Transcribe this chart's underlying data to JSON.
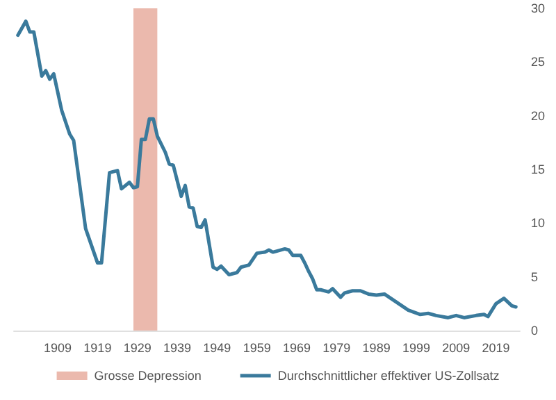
{
  "chart_data": {
    "type": "line",
    "x": [
      1899,
      1901,
      1902,
      1903,
      1905,
      1906,
      1907,
      1908,
      1910,
      1912,
      1913,
      1916,
      1919,
      1920,
      1922,
      1924,
      1925,
      1927,
      1928,
      1929,
      1930,
      1931,
      1932,
      1933,
      1934,
      1936,
      1937,
      1938,
      1940,
      1941,
      1942,
      1943,
      1944,
      1945,
      1946,
      1948,
      1949,
      1950,
      1952,
      1954,
      1955,
      1957,
      1959,
      1961,
      1962,
      1963,
      1964,
      1966,
      1967,
      1968,
      1970,
      1971,
      1972,
      1973,
      1974,
      1975,
      1977,
      1978,
      1980,
      1981,
      1983,
      1985,
      1987,
      1989,
      1991,
      1993,
      1995,
      1997,
      2000,
      2002,
      2004,
      2007,
      2009,
      2011,
      2014,
      2016,
      2017,
      2019,
      2021,
      2023,
      2024
    ],
    "series": [
      {
        "name": "Durchschnittlicher effektiver US-Zollsatz",
        "color": "#3a7a9c",
        "values": [
          27.5,
          28.8,
          27.8,
          27.8,
          23.7,
          24.2,
          23.4,
          23.9,
          20.5,
          18.3,
          17.7,
          9.5,
          6.3,
          6.3,
          14.7,
          14.9,
          13.2,
          13.8,
          13.3,
          13.4,
          17.8,
          17.8,
          19.7,
          19.7,
          18.1,
          16.6,
          15.5,
          15.4,
          12.5,
          13.5,
          11.5,
          11.4,
          9.7,
          9.6,
          10.3,
          5.9,
          5.7,
          6.0,
          5.2,
          5.4,
          5.9,
          6.1,
          7.2,
          7.3,
          7.5,
          7.3,
          7.4,
          7.6,
          7.5,
          7.0,
          7.0,
          6.3,
          5.5,
          4.8,
          3.8,
          3.8,
          3.6,
          3.9,
          3.1,
          3.5,
          3.7,
          3.7,
          3.4,
          3.3,
          3.4,
          2.9,
          2.4,
          1.9,
          1.5,
          1.6,
          1.4,
          1.2,
          1.4,
          1.2,
          1.4,
          1.5,
          1.3,
          2.5,
          3.0,
          2.3,
          2.2
        ]
      }
    ],
    "xlim": [
      1898,
      2025
    ],
    "xticks": [
      1909,
      1919,
      1929,
      1939,
      1949,
      1959,
      1969,
      1979,
      1989,
      1999,
      2009,
      2019
    ],
    "ylim": [
      0,
      30
    ],
    "yticks": [
      0,
      5,
      10,
      15,
      20,
      25,
      30
    ],
    "bands": [
      {
        "axis": "x",
        "from": 1928,
        "to": 1934,
        "label": "Grosse Depression",
        "color": "#ebb9ad"
      }
    ],
    "grid": false,
    "legend": "bottom",
    "marker": "none",
    "line_style": "solid"
  }
}
